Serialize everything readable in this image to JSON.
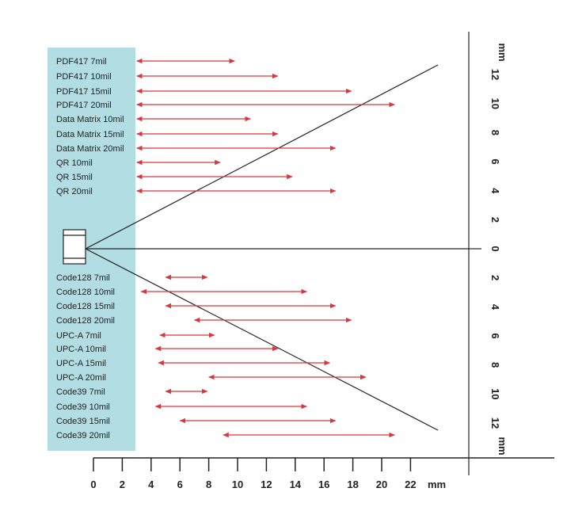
{
  "colors": {
    "panel": "#b2dde2",
    "arrow": "#d9363e",
    "axis": "#222222"
  },
  "chart_data": {
    "type": "range",
    "x_axis": {
      "ticks": [
        "0",
        "2",
        "4",
        "6",
        "8",
        "10",
        "12",
        "14",
        "16",
        "18",
        "20",
        "22"
      ],
      "unit": "mm"
    },
    "y_axis_upper": {
      "ticks": [
        "0",
        "2",
        "4",
        "6",
        "8",
        "10",
        "12"
      ],
      "unit": "mm"
    },
    "y_axis_lower": {
      "ticks": [
        "2",
        "4",
        "6",
        "8",
        "10",
        "12"
      ],
      "unit": "mm"
    },
    "series": [
      {
        "name": "PDF417 7mil",
        "range": [
          3.0,
          9.8
        ]
      },
      {
        "name": "PDF417 10mil",
        "range": [
          3.0,
          12.8
        ]
      },
      {
        "name": "PDF417 15mil",
        "range": [
          3.0,
          17.9
        ]
      },
      {
        "name": "PDF417 20mil",
        "range": [
          3.0,
          20.9
        ]
      },
      {
        "name": "Data Matrix 10mil",
        "range": [
          3.0,
          10.9
        ]
      },
      {
        "name": "Data Matrix 15mil",
        "range": [
          3.0,
          12.8
        ]
      },
      {
        "name": "Data Matrix 20mil",
        "range": [
          3.0,
          16.8
        ]
      },
      {
        "name": "QR 10mil",
        "range": [
          3.0,
          8.8
        ]
      },
      {
        "name": "QR 15mil",
        "range": [
          3.0,
          13.8
        ]
      },
      {
        "name": "QR 20mil",
        "range": [
          3.0,
          16.8
        ]
      },
      {
        "name": "Code128 7mil",
        "range": [
          5.0,
          7.9
        ]
      },
      {
        "name": "Code128 10mil",
        "range": [
          3.3,
          14.8
        ]
      },
      {
        "name": "Code128 15mil",
        "range": [
          5.0,
          16.8
        ]
      },
      {
        "name": "Code128 20mil",
        "range": [
          7.0,
          17.9
        ]
      },
      {
        "name": "UPC-A 7mil",
        "range": [
          4.6,
          8.4
        ]
      },
      {
        "name": "UPC-A 10mil",
        "range": [
          4.3,
          12.8
        ]
      },
      {
        "name": "UPC-A 15mil",
        "range": [
          4.5,
          16.4
        ]
      },
      {
        "name": "UPC-A 20mil",
        "range": [
          8.0,
          18.9
        ]
      },
      {
        "name": "Code39 7mil",
        "range": [
          5.0,
          7.9
        ]
      },
      {
        "name": "Code39 10mil",
        "range": [
          4.3,
          14.8
        ]
      },
      {
        "name": "Code39 15mil",
        "range": [
          6.0,
          16.8
        ]
      },
      {
        "name": "Code39 20mil",
        "range": [
          9.0,
          20.9
        ]
      }
    ]
  }
}
